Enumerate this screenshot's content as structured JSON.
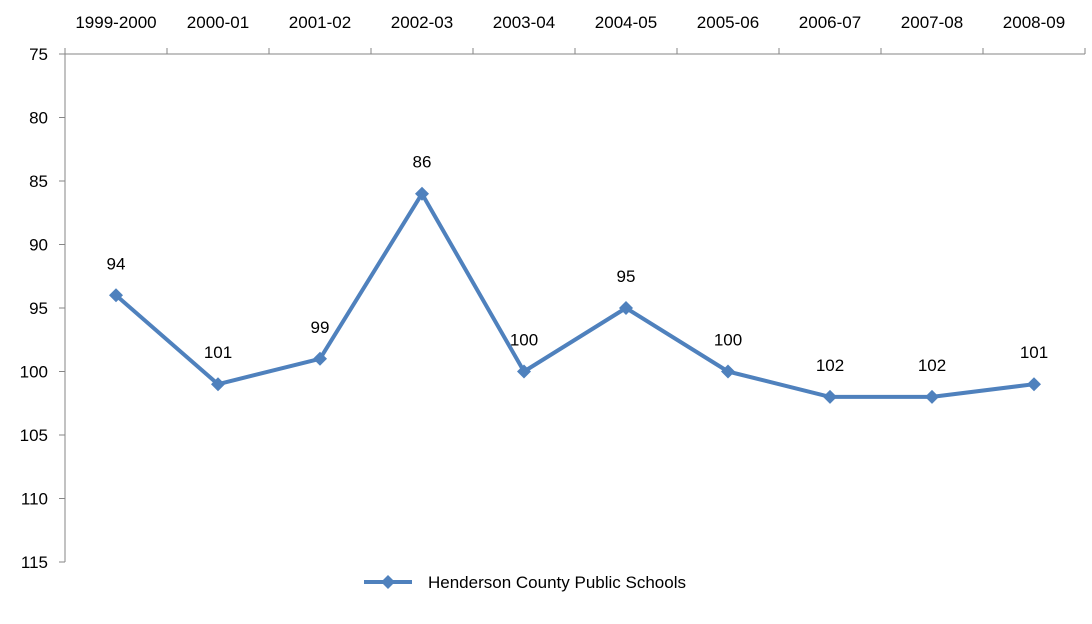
{
  "chart_data": {
    "type": "line",
    "title": "",
    "xlabel": "",
    "ylabel": "",
    "categories": [
      "1999-2000",
      "2000-01",
      "2001-02",
      "2002-03",
      "2003-04",
      "2004-05",
      "2005-06",
      "2006-07",
      "2007-08",
      "2008-09"
    ],
    "series": [
      {
        "name": "Henderson County Public Schools",
        "values": [
          94,
          101,
          99,
          86,
          100,
          95,
          100,
          102,
          102,
          101
        ],
        "color": "#4F81BD",
        "marker": "diamond"
      }
    ],
    "ylim": [
      75,
      115
    ],
    "y_ticks": [
      "75",
      "80",
      "85",
      "90",
      "95",
      "100",
      "105",
      "110",
      "115"
    ],
    "y_axis_reversed": true,
    "x_axis_position": "top",
    "grid": false,
    "data_labels": [
      "94",
      "101",
      "99",
      "86",
      "100",
      "95",
      "100",
      "102",
      "102",
      "101"
    ],
    "legend_position": "bottom"
  }
}
